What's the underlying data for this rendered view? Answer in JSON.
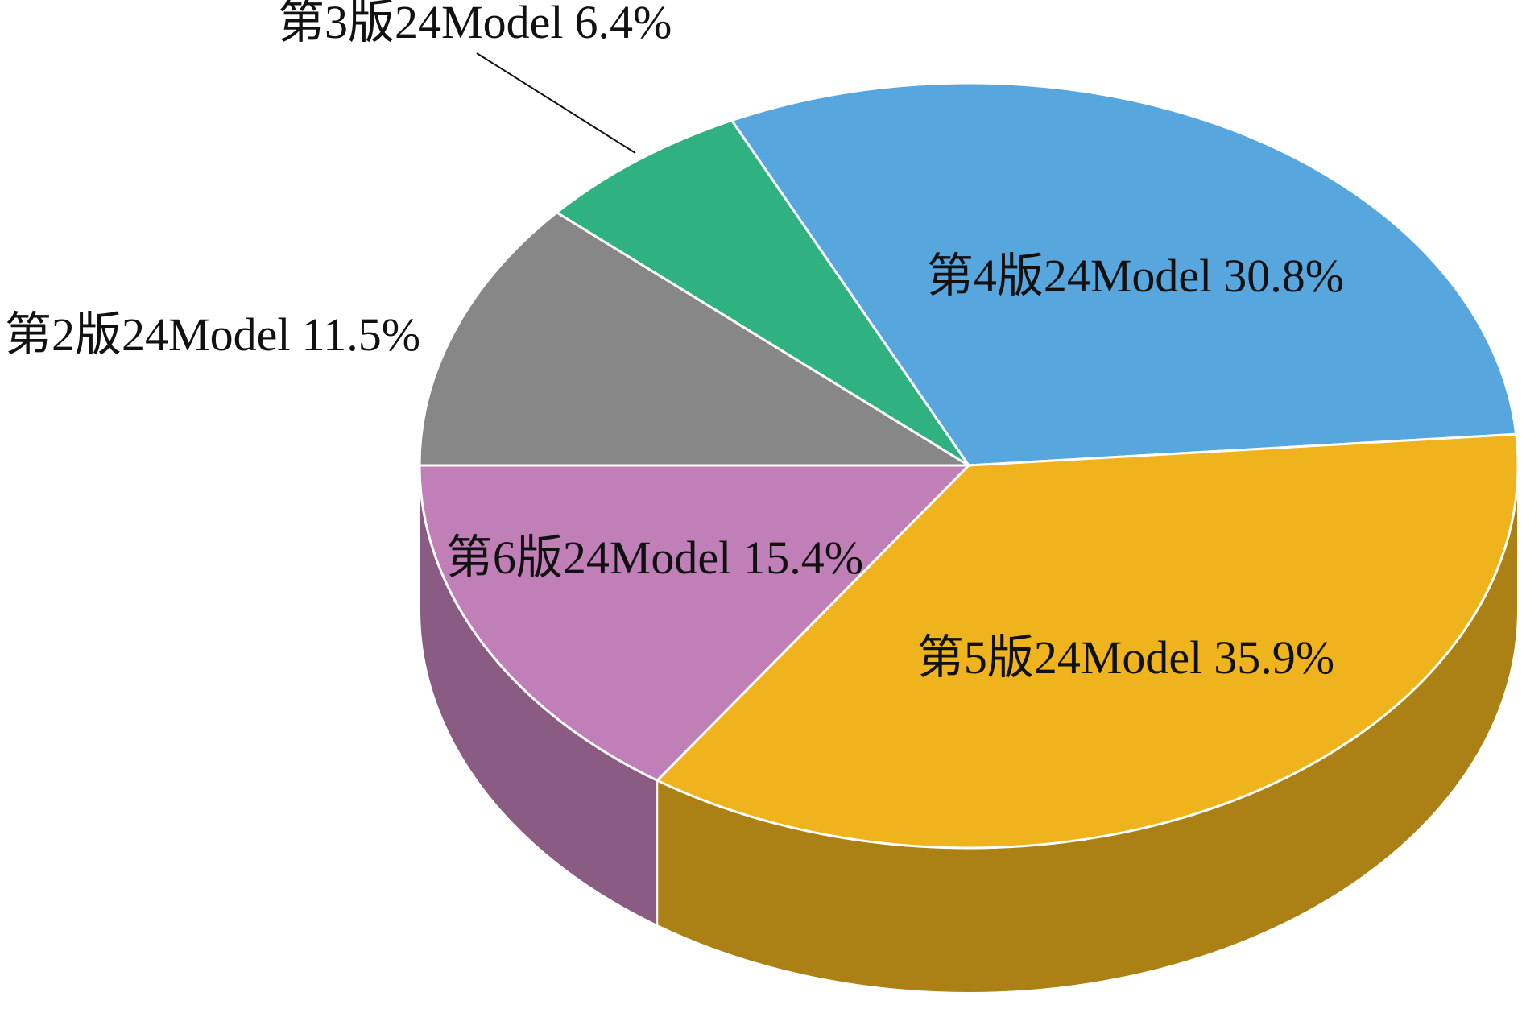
{
  "chart_data": {
    "type": "pie",
    "categories": [
      "第2版24Model",
      "第3版24Model",
      "第4版24Model",
      "第5版24Model",
      "第6版24Model"
    ],
    "values": [
      11.5,
      6.4,
      30.8,
      35.9,
      15.4
    ],
    "value_labels": [
      "11.5%",
      "6.4%",
      "30.8%",
      "35.9%",
      "15.4%"
    ],
    "colors": [
      "#878787",
      "#2fb27f",
      "#57a6de",
      "#eeb31d",
      "#c07fb6"
    ]
  }
}
